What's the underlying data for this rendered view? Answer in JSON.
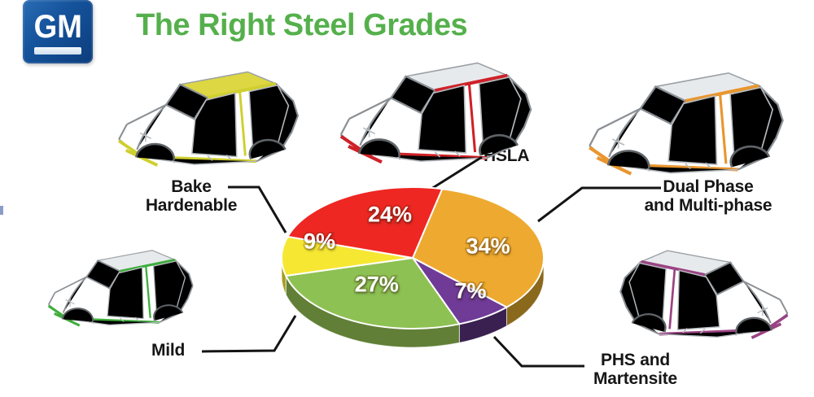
{
  "header": {
    "logo_text": "GM",
    "title": "The Right Steel Grades",
    "title_color": "#55b04c"
  },
  "chart_data": {
    "type": "pie",
    "title": "The Right Steel Grades",
    "unit": "%",
    "effect": "3d",
    "start_angle_deg": 283,
    "direction": "clockwise",
    "legend_position": "callouts-around-chart",
    "slices": [
      {
        "label": "Dual Phase and Multi-phase",
        "value": 34,
        "display": "34%",
        "color": "#eeaa30",
        "side_color": "#8a681c"
      },
      {
        "label": "PHS and Martensite",
        "value": 7,
        "display": "7%",
        "color": "#6f3b97",
        "side_color": "#392050"
      },
      {
        "label": "Mild",
        "value": 27,
        "display": "27%",
        "color": "#8dc153",
        "side_color": "#617f36"
      },
      {
        "label": "Bake Hardenable",
        "value": 9,
        "display": "9%",
        "color": "#f6e733",
        "side_color": "#a79d22"
      },
      {
        "label": "HSLA",
        "value": 24,
        "display": "24%",
        "color": "#ee2723",
        "side_color": "#8f1b18"
      }
    ]
  },
  "callouts": [
    {
      "id": "bake",
      "line1": "Bake",
      "line2": "Hardenable",
      "accent": "#cfcf2e"
    },
    {
      "id": "hsla",
      "line1": "HSLA",
      "line2": "",
      "accent": "#cf2128"
    },
    {
      "id": "dual",
      "line1": "Dual Phase",
      "line2": "and Multi-phase",
      "accent": "#e8962f"
    },
    {
      "id": "mild",
      "line1": "Mild",
      "line2": "",
      "accent": "#3fae3d"
    },
    {
      "id": "phs",
      "line1": "PHS and",
      "line2": "Martensite",
      "accent": "#9a4384"
    }
  ]
}
